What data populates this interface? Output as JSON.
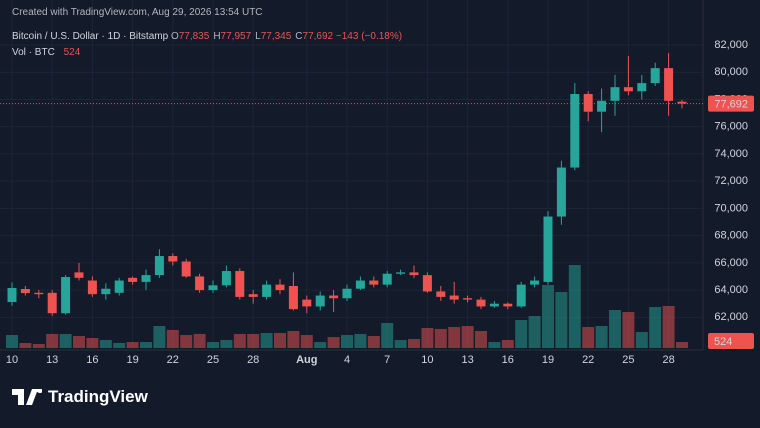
{
  "watermark": "Created with TradingView.com, Aug 29, 2026 13:54 UTC",
  "logo": "TradingView",
  "chart_data": {
    "type": "candlestick",
    "title": "Bitcoin / U.S. Dollar · 1D · Bitstamp",
    "ohlc_legend": [
      {
        "key": "O",
        "value": "77,835"
      },
      {
        "key": "H",
        "value": "77,957"
      },
      {
        "key": "L",
        "value": "77,345"
      },
      {
        "key": "C",
        "value": "77,692"
      }
    ],
    "change": "−143 (−0.18%)",
    "volume_title": "Vol · BTC",
    "last_price_label": "77,692",
    "categories": [
      "Jul 10",
      "Jul 11",
      "Jul 12",
      "Jul 13",
      "Jul 14",
      "Jul 15",
      "Jul 16",
      "Jul 17",
      "Jul 18",
      "Jul 19",
      "Jul 20",
      "Jul 21",
      "Jul 22",
      "Jul 23",
      "Jul 24",
      "Jul 25",
      "Jul 26",
      "Jul 27",
      "Jul 28",
      "Jul 29",
      "Jul 30",
      "Jul 31",
      "Aug 1",
      "Aug 2",
      "Aug 3",
      "Aug 4",
      "Aug 5",
      "Aug 6",
      "Aug 7",
      "Aug 8",
      "Aug 9",
      "Aug 10",
      "Aug 11",
      "Aug 12",
      "Aug 13",
      "Aug 14",
      "Aug 15",
      "Aug 16",
      "Aug 17",
      "Aug 18",
      "Aug 19",
      "Aug 20",
      "Aug 21",
      "Aug 22",
      "Aug 23",
      "Aug 24",
      "Aug 25",
      "Aug 26",
      "Aug 27",
      "Aug 28",
      "Aug 29"
    ],
    "open": [
      63125,
      64080,
      63800,
      63800,
      62300,
      65300,
      64700,
      63700,
      63800,
      64900,
      64600,
      65100,
      66500,
      66100,
      65000,
      64000,
      64350,
      65400,
      63700,
      63500,
      64400,
      64300,
      63300,
      62800,
      63600,
      63400,
      64100,
      64700,
      64400,
      65200,
      65300,
      65100,
      63900,
      63600,
      63400,
      63300,
      62800,
      63000,
      62800,
      64400,
      64600,
      69400,
      73000,
      78400,
      77100,
      77900,
      78900,
      78600,
      79200,
      80300,
      77835
    ],
    "high": [
      64570,
      64300,
      64000,
      64000,
      65100,
      66000,
      65000,
      64500,
      64900,
      65000,
      65500,
      67000,
      66700,
      66300,
      65200,
      64700,
      65800,
      65600,
      64000,
      64700,
      64800,
      65300,
      63600,
      63900,
      64000,
      64400,
      65000,
      65000,
      65400,
      65500,
      65800,
      65300,
      64300,
      64600,
      63600,
      63500,
      63200,
      63100,
      64600,
      65000,
      69800,
      73500,
      79200,
      78600,
      78800,
      79800,
      81200,
      79800,
      80700,
      81400,
      77957
    ],
    "low": [
      62850,
      63600,
      63400,
      62100,
      62200,
      64700,
      63500,
      63300,
      63600,
      64400,
      64000,
      64900,
      65800,
      64900,
      63800,
      63800,
      64200,
      63300,
      63000,
      63300,
      63700,
      62500,
      62300,
      62500,
      62400,
      63200,
      64000,
      64200,
      64200,
      65100,
      64900,
      63800,
      63200,
      63000,
      63100,
      62600,
      62700,
      62600,
      62700,
      64200,
      64400,
      68800,
      72800,
      76400,
      75600,
      76800,
      78300,
      78000,
      79000,
      76800,
      77345
    ],
    "close": [
      64155,
      63780,
      63700,
      62300,
      64960,
      64900,
      63700,
      64100,
      64700,
      64600,
      65100,
      66500,
      66100,
      65000,
      64000,
      64350,
      65400,
      63500,
      63500,
      64400,
      64000,
      62600,
      62800,
      63600,
      63400,
      64100,
      64700,
      64400,
      65200,
      65300,
      65100,
      63900,
      63500,
      63300,
      63300,
      62800,
      63000,
      62800,
      64400,
      64700,
      69400,
      73000,
      78400,
      77100,
      77900,
      78900,
      78600,
      79200,
      80300,
      77900,
      77692
    ],
    "volume": [
      1130,
      435,
      350,
      1220,
      1220,
      1045,
      870,
      700,
      435,
      520,
      520,
      1915,
      1565,
      1130,
      1220,
      520,
      700,
      1220,
      1220,
      1305,
      1305,
      1480,
      1130,
      520,
      955,
      1130,
      1220,
      1045,
      2175,
      700,
      785,
      1740,
      1655,
      1825,
      1915,
      1480,
      520,
      700,
      2435,
      2785,
      5480,
      4870,
      7220,
      1825,
      1915,
      3305,
      3130,
      1390,
      3565,
      3655,
      524
    ],
    "up_color": "#26a69a",
    "down_color": "#ef5350",
    "ylim": [
      59600,
      83100
    ],
    "yticks": [
      {
        "value": 62000,
        "label": "62,000"
      },
      {
        "value": 64000,
        "label": "64,000"
      },
      {
        "value": 66000,
        "label": "66,000"
      },
      {
        "value": 68000,
        "label": "68,000"
      },
      {
        "value": 70000,
        "label": "70,000"
      },
      {
        "value": 72000,
        "label": "72,000"
      },
      {
        "value": 74000,
        "label": "74,000"
      },
      {
        "value": 76000,
        "label": "76,000"
      },
      {
        "value": 78000,
        "label": "78,000"
      },
      {
        "value": 80000,
        "label": "80,000"
      },
      {
        "value": 82000,
        "label": "82,000"
      }
    ],
    "xticks": [
      {
        "value": "Jul 10",
        "label": "10"
      },
      {
        "value": "Jul 13",
        "label": "13"
      },
      {
        "value": "Jul 16",
        "label": "16"
      },
      {
        "value": "Jul 19",
        "label": "19"
      },
      {
        "value": "Jul 22",
        "label": "22"
      },
      {
        "value": "Jul 25",
        "label": "25"
      },
      {
        "value": "Jul 28",
        "label": "28"
      },
      {
        "value": "Aug 1",
        "label": "Aug"
      },
      {
        "value": "Aug 4",
        "label": "4"
      },
      {
        "value": "Aug 7",
        "label": "7"
      },
      {
        "value": "Aug 10",
        "label": "10"
      },
      {
        "value": "Aug 13",
        "label": "13"
      },
      {
        "value": "Aug 16",
        "label": "16"
      },
      {
        "value": "Aug 19",
        "label": "19"
      },
      {
        "value": "Aug 22",
        "label": "22"
      },
      {
        "value": "Aug 25",
        "label": "25"
      },
      {
        "value": "Aug 28",
        "label": "28"
      }
    ],
    "grid": true
  }
}
